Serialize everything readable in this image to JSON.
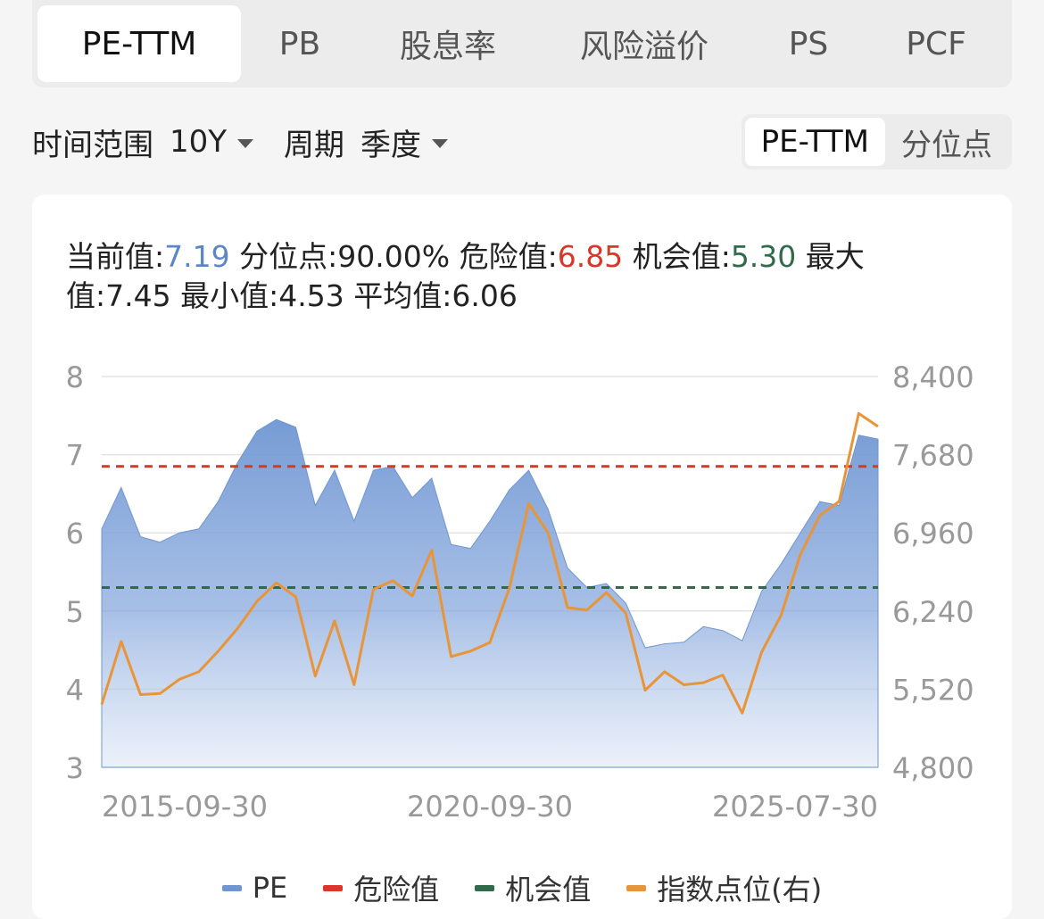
{
  "tabs": [
    {
      "label": "PE-TTM",
      "active": true
    },
    {
      "label": "PB"
    },
    {
      "label": "股息率"
    },
    {
      "label": "风险溢价"
    },
    {
      "label": "PS"
    },
    {
      "label": "PCF"
    }
  ],
  "filters": {
    "range_label": "时间范围",
    "range_value": "10Y",
    "period_label": "周期",
    "period_value": "季度",
    "toggle": [
      {
        "label": "PE-TTM",
        "active": true
      },
      {
        "label": "分位点"
      }
    ]
  },
  "stats": {
    "current_label": "当前值:",
    "current_value": "7.19",
    "pct_label": "分位点:",
    "pct_value": "90.00%",
    "danger_label": "危险值:",
    "danger_value": "6.85",
    "chance_label": "机会值:",
    "chance_value": "5.30",
    "max_label": "最大值:",
    "max_value": "7.45",
    "min_label": "最小值:",
    "min_value": "4.53",
    "avg_label": "平均值:",
    "avg_value": "6.06"
  },
  "colors": {
    "pe": "#6f96d2",
    "danger": "#d8372a",
    "chance": "#2f6b4a",
    "index": "#e8953a"
  },
  "chart_data": {
    "type": "area",
    "x_tick_labels": [
      "2015-09-30",
      "2020-09-30",
      "2025-07-30"
    ],
    "y_left": {
      "min": 3,
      "max": 8,
      "ticks": [
        "8",
        "7",
        "6",
        "5",
        "4",
        "3"
      ]
    },
    "y_right": {
      "min": 4800,
      "max": 8400,
      "ticks": [
        "8,400",
        "7,680",
        "6,960",
        "6,240",
        "5,520",
        "4,800"
      ]
    },
    "danger_value": 6.85,
    "chance_value": 5.3,
    "series": [
      {
        "name": "PE",
        "axis": "left",
        "values": [
          6.05,
          6.58,
          5.95,
          5.88,
          6.0,
          6.05,
          6.4,
          6.9,
          7.3,
          7.45,
          7.35,
          6.35,
          6.8,
          6.15,
          6.8,
          6.85,
          6.45,
          6.7,
          5.85,
          5.8,
          6.15,
          6.55,
          6.8,
          6.3,
          5.55,
          5.3,
          5.35,
          5.1,
          4.53,
          4.58,
          4.6,
          4.8,
          4.75,
          4.62,
          5.25,
          5.6,
          6.0,
          6.4,
          6.35,
          7.25,
          7.2
        ]
      },
      {
        "name": "危险值",
        "axis": "left",
        "constant": 6.85
      },
      {
        "name": "机会值",
        "axis": "left",
        "constant": 5.3
      },
      {
        "name": "指数点位(右)",
        "axis": "right",
        "values": [
          5380,
          5960,
          5470,
          5480,
          5610,
          5680,
          5870,
          6080,
          6330,
          6500,
          6370,
          5640,
          6150,
          5560,
          6440,
          6520,
          6380,
          6800,
          5820,
          5870,
          5950,
          6450,
          7230,
          6960,
          6270,
          6250,
          6410,
          6220,
          5510,
          5680,
          5560,
          5580,
          5650,
          5300,
          5860,
          6200,
          6760,
          7120,
          7250,
          8060,
          7940
        ]
      }
    ],
    "legend_position": "bottom",
    "grid": true
  }
}
